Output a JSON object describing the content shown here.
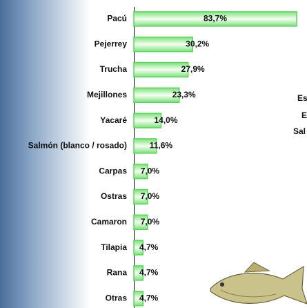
{
  "chart_data": {
    "type": "bar",
    "orientation": "horizontal",
    "categories": [
      "Pacú",
      "Pejerrey",
      "Trucha",
      "Mejillones",
      "Yacaré",
      "Salmón (blanco / rosado)",
      "Carpas",
      "Ostras",
      "Camaron",
      "Tilapia",
      "Rana",
      "Otras"
    ],
    "values": [
      83.7,
      30.2,
      27.9,
      23.3,
      14.0,
      11.6,
      7.0,
      7.0,
      7.0,
      4.7,
      4.7,
      4.7
    ],
    "value_labels": [
      "83,7%",
      "30,2%",
      "27,9%",
      "23,3%",
      "14,0%",
      "11,6%",
      "7,0%",
      "7,0%",
      "7,0%",
      "4,7%",
      "4,7%",
      "4,7%"
    ],
    "color": "#5fd35f",
    "xlim": [
      0,
      100
    ]
  },
  "side_text": [
    "Es",
    "E",
    "Sal"
  ]
}
